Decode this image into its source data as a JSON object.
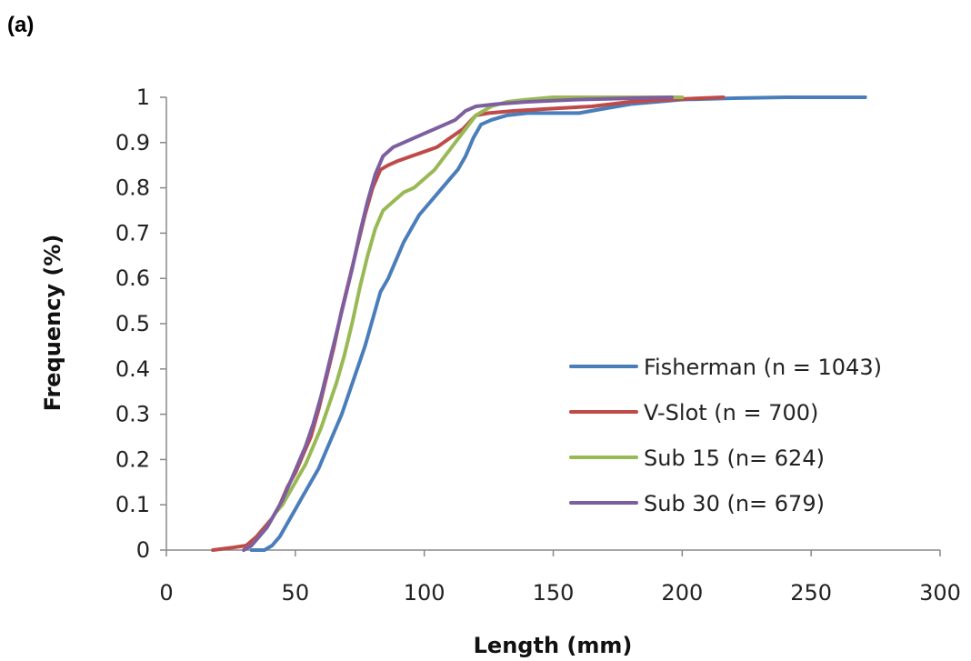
{
  "panel_label": "(a)",
  "chart_data": {
    "type": "line",
    "title": "",
    "xlabel": "Length (mm)",
    "ylabel": "Frequency (%)",
    "xlim": [
      0,
      300
    ],
    "ylim": [
      0,
      1
    ],
    "xticks": [
      0,
      50,
      100,
      150,
      200,
      250,
      300
    ],
    "yticks": [
      0,
      0.1,
      0.2,
      0.3,
      0.4,
      0.5,
      0.6,
      0.7,
      0.8,
      0.9,
      1
    ],
    "x_tick_labels": [
      "0",
      "50",
      "100",
      "150",
      "200",
      "250",
      "300"
    ],
    "y_tick_labels": [
      "0",
      "0.1",
      "0.2",
      "0.3",
      "0.4",
      "0.5",
      "0.6",
      "0.7",
      "0.8",
      "0.9",
      "1"
    ],
    "grid": false,
    "legend_position": "bottom-right",
    "series": [
      {
        "name": "Fisherman (n = 1043)",
        "color": "#4a7ebb",
        "points": [
          [
            33,
            0
          ],
          [
            38,
            0
          ],
          [
            41,
            0.01
          ],
          [
            44,
            0.03
          ],
          [
            47,
            0.06
          ],
          [
            50,
            0.09
          ],
          [
            53,
            0.12
          ],
          [
            56,
            0.15
          ],
          [
            59,
            0.18
          ],
          [
            62,
            0.22
          ],
          [
            65,
            0.26
          ],
          [
            68,
            0.3
          ],
          [
            71,
            0.35
          ],
          [
            74,
            0.4
          ],
          [
            77,
            0.45
          ],
          [
            80,
            0.51
          ],
          [
            83,
            0.57
          ],
          [
            86,
            0.6
          ],
          [
            89,
            0.64
          ],
          [
            92,
            0.68
          ],
          [
            95,
            0.71
          ],
          [
            98,
            0.74
          ],
          [
            101,
            0.76
          ],
          [
            104,
            0.78
          ],
          [
            107,
            0.8
          ],
          [
            110,
            0.82
          ],
          [
            113,
            0.84
          ],
          [
            116,
            0.87
          ],
          [
            119,
            0.91
          ],
          [
            122,
            0.94
          ],
          [
            126,
            0.95
          ],
          [
            132,
            0.96
          ],
          [
            140,
            0.965
          ],
          [
            150,
            0.965
          ],
          [
            160,
            0.965
          ],
          [
            170,
            0.975
          ],
          [
            180,
            0.985
          ],
          [
            190,
            0.99
          ],
          [
            200,
            0.995
          ],
          [
            220,
            0.998
          ],
          [
            240,
            1
          ],
          [
            271,
            1
          ]
        ]
      },
      {
        "name": "V-Slot (n = 700)",
        "color": "#be4b48",
        "points": [
          [
            18,
            0
          ],
          [
            25,
            0.005
          ],
          [
            31,
            0.01
          ],
          [
            35,
            0.03
          ],
          [
            38,
            0.05
          ],
          [
            41,
            0.07
          ],
          [
            44,
            0.1
          ],
          [
            47,
            0.14
          ],
          [
            50,
            0.17
          ],
          [
            53,
            0.21
          ],
          [
            56,
            0.25
          ],
          [
            59,
            0.31
          ],
          [
            62,
            0.38
          ],
          [
            65,
            0.45
          ],
          [
            68,
            0.53
          ],
          [
            71,
            0.6
          ],
          [
            74,
            0.67
          ],
          [
            77,
            0.74
          ],
          [
            80,
            0.8
          ],
          [
            83,
            0.84
          ],
          [
            86,
            0.85
          ],
          [
            90,
            0.86
          ],
          [
            95,
            0.87
          ],
          [
            100,
            0.88
          ],
          [
            105,
            0.89
          ],
          [
            110,
            0.91
          ],
          [
            115,
            0.93
          ],
          [
            120,
            0.96
          ],
          [
            125,
            0.965
          ],
          [
            135,
            0.97
          ],
          [
            150,
            0.975
          ],
          [
            165,
            0.98
          ],
          [
            180,
            0.99
          ],
          [
            195,
            0.995
          ],
          [
            216,
            1
          ]
        ]
      },
      {
        "name": "Sub 15 (n= 624)",
        "color": "#98b954",
        "points": [
          [
            30,
            0
          ],
          [
            33,
            0.01
          ],
          [
            36,
            0.03
          ],
          [
            39,
            0.05
          ],
          [
            42,
            0.08
          ],
          [
            45,
            0.1
          ],
          [
            48,
            0.13
          ],
          [
            51,
            0.16
          ],
          [
            54,
            0.19
          ],
          [
            57,
            0.23
          ],
          [
            60,
            0.27
          ],
          [
            63,
            0.32
          ],
          [
            66,
            0.37
          ],
          [
            69,
            0.43
          ],
          [
            72,
            0.5
          ],
          [
            75,
            0.58
          ],
          [
            78,
            0.65
          ],
          [
            81,
            0.71
          ],
          [
            84,
            0.75
          ],
          [
            88,
            0.77
          ],
          [
            92,
            0.79
          ],
          [
            96,
            0.8
          ],
          [
            100,
            0.82
          ],
          [
            104,
            0.84
          ],
          [
            108,
            0.87
          ],
          [
            112,
            0.9
          ],
          [
            116,
            0.93
          ],
          [
            120,
            0.96
          ],
          [
            126,
            0.98
          ],
          [
            132,
            0.99
          ],
          [
            140,
            0.995
          ],
          [
            150,
            1
          ],
          [
            200,
            1
          ]
        ]
      },
      {
        "name": "Sub 30 (n= 679)",
        "color": "#7d5fa0",
        "points": [
          [
            30,
            0
          ],
          [
            33,
            0.01
          ],
          [
            36,
            0.03
          ],
          [
            39,
            0.05
          ],
          [
            42,
            0.08
          ],
          [
            45,
            0.11
          ],
          [
            48,
            0.15
          ],
          [
            51,
            0.19
          ],
          [
            54,
            0.23
          ],
          [
            57,
            0.28
          ],
          [
            60,
            0.34
          ],
          [
            63,
            0.41
          ],
          [
            66,
            0.48
          ],
          [
            69,
            0.55
          ],
          [
            72,
            0.62
          ],
          [
            75,
            0.7
          ],
          [
            78,
            0.77
          ],
          [
            81,
            0.83
          ],
          [
            84,
            0.87
          ],
          [
            88,
            0.89
          ],
          [
            92,
            0.9
          ],
          [
            96,
            0.91
          ],
          [
            100,
            0.92
          ],
          [
            104,
            0.93
          ],
          [
            108,
            0.94
          ],
          [
            112,
            0.95
          ],
          [
            116,
            0.97
          ],
          [
            120,
            0.98
          ],
          [
            128,
            0.985
          ],
          [
            140,
            0.99
          ],
          [
            160,
            0.995
          ],
          [
            196,
            1
          ]
        ]
      }
    ]
  }
}
